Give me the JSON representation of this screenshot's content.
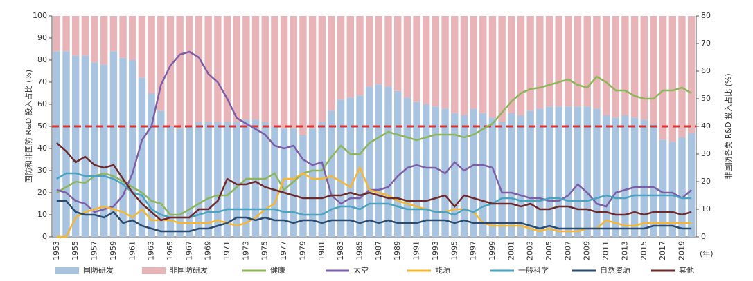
{
  "chart_data": {
    "type": "bar",
    "y_label": "国防和非国防 R&D 投入占比 (%)",
    "y2_label": "非国防各类 R&D 投入占比 (%)",
    "x_unit": "(年)",
    "categories": [
      "1953",
      null,
      "1955",
      null,
      "1957",
      null,
      "1959",
      null,
      "1961",
      null,
      "1963",
      null,
      "1965",
      null,
      "1967",
      null,
      "1969",
      null,
      "1971",
      null,
      "1973",
      null,
      "1975",
      null,
      "1977",
      null,
      "1979",
      null,
      "1981",
      null,
      "1983",
      null,
      "1985",
      null,
      "1987",
      null,
      "1989",
      null,
      "1991",
      null,
      "1993",
      null,
      "1995",
      null,
      "1997",
      null,
      "1999",
      null,
      "2001",
      null,
      "2003",
      null,
      "2005",
      null,
      "2007",
      null,
      "2009",
      null,
      "2011",
      null,
      "2013",
      null,
      "2015",
      null,
      "2017",
      null,
      "2019",
      null
    ],
    "ylim": [
      0,
      100
    ],
    "yticks": [
      0,
      10,
      20,
      30,
      40,
      50,
      60,
      70,
      80,
      90,
      100
    ],
    "y2lim": [
      0,
      80
    ],
    "y2ticks": [
      0,
      10,
      20,
      30,
      40,
      50,
      60,
      70,
      80
    ],
    "reference_line": {
      "value": 50,
      "color": "#e03030"
    },
    "series": [
      {
        "name": "国防研发",
        "type": "bar",
        "color": "#a9c4e0",
        "values": [
          84,
          84,
          82,
          82,
          79,
          78,
          84,
          81,
          80,
          72,
          65,
          57,
          50,
          49,
          50,
          52,
          52,
          52,
          52,
          52,
          53,
          53,
          52,
          50,
          49,
          49,
          46,
          49,
          52,
          57,
          62,
          63,
          64,
          68,
          69,
          68,
          66,
          63,
          61,
          60,
          59,
          58,
          56,
          55,
          58,
          56,
          54,
          52,
          56,
          55,
          57,
          58,
          59,
          59,
          59,
          59,
          59,
          58,
          55,
          54,
          55,
          54,
          53,
          51,
          44,
          43,
          45,
          47
        ]
      },
      {
        "name": "非国防研发",
        "type": "bar",
        "color": "#e8b4b8",
        "values": [
          16,
          16,
          18,
          18,
          21,
          22,
          16,
          19,
          20,
          28,
          35,
          43,
          50,
          51,
          50,
          48,
          48,
          48,
          48,
          48,
          47,
          47,
          48,
          50,
          51,
          51,
          54,
          51,
          48,
          43,
          38,
          37,
          36,
          32,
          31,
          32,
          34,
          37,
          39,
          40,
          41,
          42,
          44,
          45,
          42,
          44,
          46,
          48,
          44,
          45,
          43,
          42,
          41,
          41,
          41,
          41,
          41,
          42,
          45,
          46,
          45,
          46,
          47,
          49,
          56,
          57,
          55,
          53
        ]
      },
      {
        "name": "健康",
        "type": "line",
        "axis": "y2",
        "color": "#8db55a",
        "values": [
          16,
          18,
          20,
          19.5,
          22,
          23,
          22,
          20,
          18,
          16,
          13,
          12,
          8,
          8,
          10,
          12,
          14,
          15,
          15,
          18,
          21,
          21,
          21,
          23,
          17,
          20,
          23,
          24,
          24,
          29,
          33,
          30,
          30,
          34,
          36,
          38,
          37,
          36,
          35,
          36,
          37,
          37,
          37,
          36,
          37,
          39,
          41,
          45,
          49,
          52,
          53.5,
          54,
          55,
          56,
          57,
          55,
          54,
          58,
          56,
          53,
          53,
          51,
          50,
          50,
          53,
          53,
          54,
          52
        ]
      },
      {
        "name": "太空",
        "type": "line",
        "axis": "y2",
        "color": "#7b5ea7",
        "values": [
          17,
          16,
          13,
          12,
          9,
          10,
          11,
          15,
          23,
          35,
          40,
          55,
          62,
          66,
          67,
          65,
          59,
          56,
          50,
          43,
          41,
          39,
          37,
          33,
          32,
          33,
          28,
          26,
          27,
          15,
          12,
          14,
          14,
          17,
          17,
          18,
          22,
          25,
          26,
          25,
          25,
          23,
          27,
          24,
          26,
          26,
          25,
          16,
          16,
          15,
          14,
          14,
          13,
          13,
          15,
          19,
          16,
          12,
          11,
          16,
          17,
          18,
          18,
          18,
          16,
          16,
          14,
          17
        ]
      },
      {
        "name": "能源",
        "type": "line",
        "axis": "y2",
        "color": "#f5b731",
        "values": [
          0,
          0,
          7,
          9,
          10,
          11,
          10,
          9,
          7,
          10,
          6,
          6,
          6,
          5,
          5,
          5,
          5,
          6,
          5,
          4,
          5,
          7,
          10,
          12,
          21,
          21,
          23,
          21,
          21,
          22,
          20,
          18,
          25,
          17,
          16,
          15,
          13,
          12,
          11,
          10,
          9,
          9,
          10,
          10,
          9,
          5,
          4,
          4,
          4,
          4,
          3,
          2,
          3,
          2,
          2,
          2,
          3,
          3,
          6,
          5,
          4,
          4,
          5,
          5,
          5,
          5,
          5,
          5
        ]
      },
      {
        "name": "一般科学",
        "type": "line",
        "axis": "y2",
        "color": "#4aa3c0",
        "values": [
          21,
          23,
          23,
          22,
          22,
          22,
          21,
          19,
          16,
          15,
          10,
          8,
          7,
          7,
          7,
          8,
          9,
          9,
          10,
          10,
          10,
          10,
          10,
          10,
          9,
          9,
          8,
          8,
          8,
          10,
          11,
          11,
          10,
          12,
          12,
          12,
          11,
          10,
          10,
          10,
          9,
          9,
          8,
          10,
          9,
          11,
          12,
          14,
          14,
          13,
          13,
          13,
          14,
          14,
          13,
          13,
          13,
          14,
          15,
          14,
          14,
          15,
          15,
          15,
          15,
          15,
          14,
          14
        ]
      },
      {
        "name": "自然资源",
        "type": "line",
        "axis": "y2",
        "color": "#2a4a6e",
        "values": [
          13,
          13,
          9,
          8,
          8,
          7,
          9,
          5,
          6,
          4,
          3,
          2,
          2,
          2,
          2,
          3,
          3,
          4,
          5,
          7,
          7,
          6,
          7,
          6,
          6,
          5,
          6,
          6,
          5,
          6,
          6,
          6,
          5,
          6,
          5,
          6,
          5,
          5,
          5,
          6,
          6,
          6,
          5,
          6,
          5,
          5,
          5,
          5,
          5,
          5,
          4,
          3,
          4,
          3,
          3,
          3,
          3,
          3,
          3,
          3,
          3,
          3,
          3,
          4,
          4,
          4,
          3,
          3
        ]
      },
      {
        "name": "其他",
        "type": "line",
        "axis": "y2",
        "color": "#6e2a2a",
        "values": [
          34,
          31,
          27,
          29,
          26,
          25,
          26,
          21,
          16,
          12,
          9,
          6,
          7,
          7,
          7,
          10,
          10,
          13,
          21,
          19,
          19,
          20,
          18,
          17,
          16,
          15,
          14,
          14,
          14,
          15,
          15,
          16,
          15,
          16,
          15,
          14,
          14,
          13,
          13,
          13,
          14,
          15,
          11,
          15,
          14,
          13,
          12,
          12,
          12,
          11,
          12,
          10,
          10,
          11,
          11,
          10,
          10,
          9,
          9,
          8,
          8,
          9,
          8,
          9,
          9,
          9,
          8,
          9
        ]
      }
    ]
  }
}
